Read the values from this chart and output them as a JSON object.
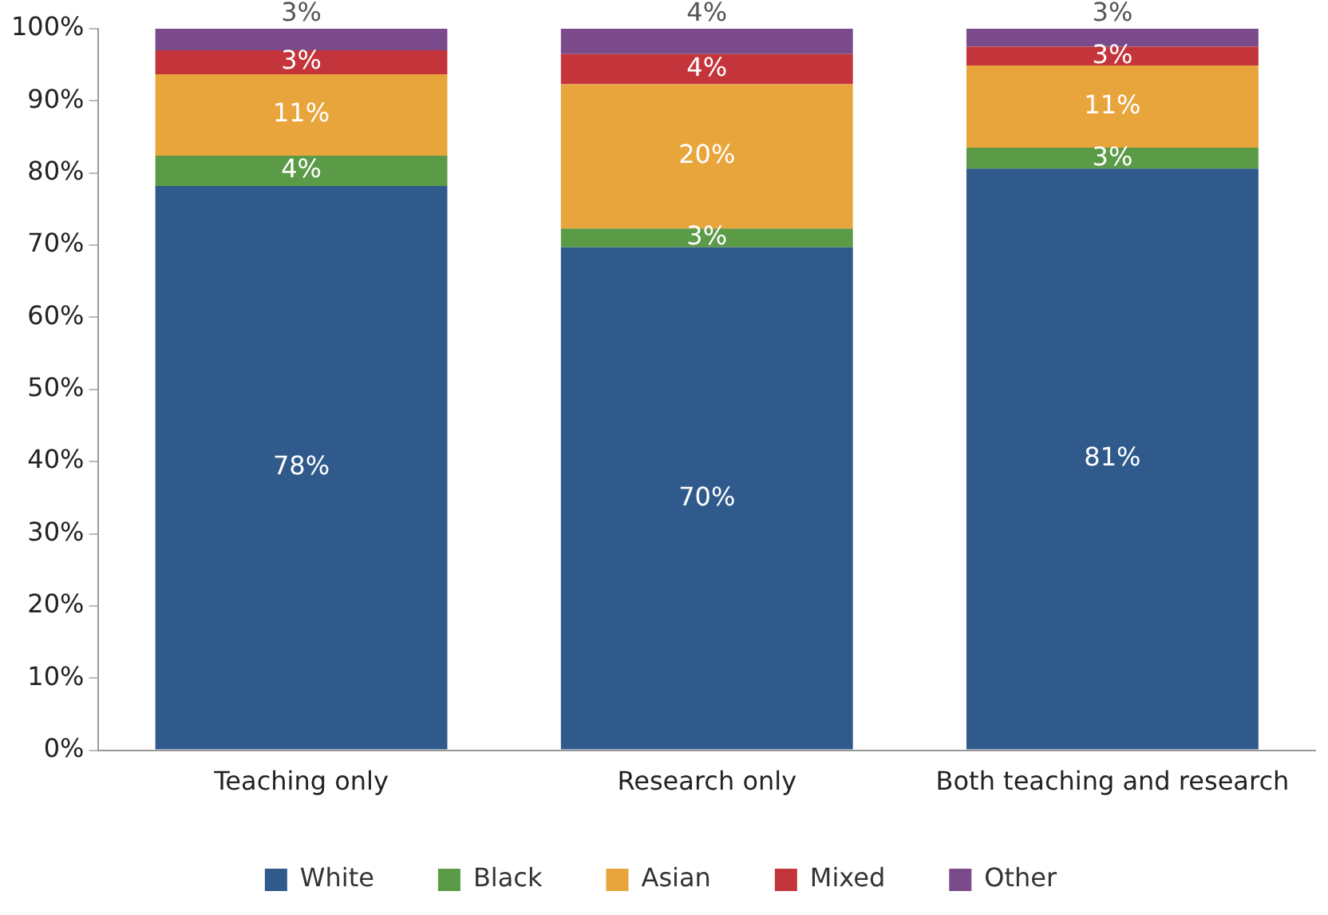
{
  "chart_data": {
    "type": "bar",
    "stacked": true,
    "categories": [
      "Teaching only",
      "Research only",
      "Both teaching and research"
    ],
    "series": [
      {
        "name": "White",
        "color": "#2f5a8b",
        "values": [
          78.2,
          69.7,
          80.6
        ],
        "value_labels": [
          "78%",
          "70%",
          "81%"
        ]
      },
      {
        "name": "Black",
        "color": "#5b9a46",
        "values": [
          4.2,
          2.6,
          2.9
        ],
        "value_labels": [
          "4%",
          "3%",
          "3%"
        ]
      },
      {
        "name": "Asian",
        "color": "#e8a53c",
        "values": [
          11.3,
          20.0,
          11.4
        ],
        "value_labels": [
          "11%",
          "20%",
          "11%"
        ]
      },
      {
        "name": "Mixed",
        "color": "#c4353b",
        "values": [
          3.3,
          4.2,
          2.6
        ],
        "value_labels": [
          "3%",
          "4%",
          "3%"
        ]
      },
      {
        "name": "Other",
        "color": "#7b4a8b",
        "values": [
          3.0,
          3.5,
          2.5
        ],
        "value_labels": [
          "3%",
          "4%",
          "3%"
        ]
      }
    ],
    "ylim": [
      0,
      100
    ],
    "yticks": [
      {
        "value": 0,
        "label": "0%"
      },
      {
        "value": 10,
        "label": "10%"
      },
      {
        "value": 20,
        "label": "20%"
      },
      {
        "value": 30,
        "label": "30%"
      },
      {
        "value": 40,
        "label": "40%"
      },
      {
        "value": 50,
        "label": "50%"
      },
      {
        "value": 60,
        "label": "60%"
      },
      {
        "value": 70,
        "label": "70%"
      },
      {
        "value": 80,
        "label": "80%"
      },
      {
        "value": 90,
        "label": "90%"
      },
      {
        "value": 100,
        "label": "100%"
      }
    ],
    "grid": false,
    "legend": "bottom"
  }
}
